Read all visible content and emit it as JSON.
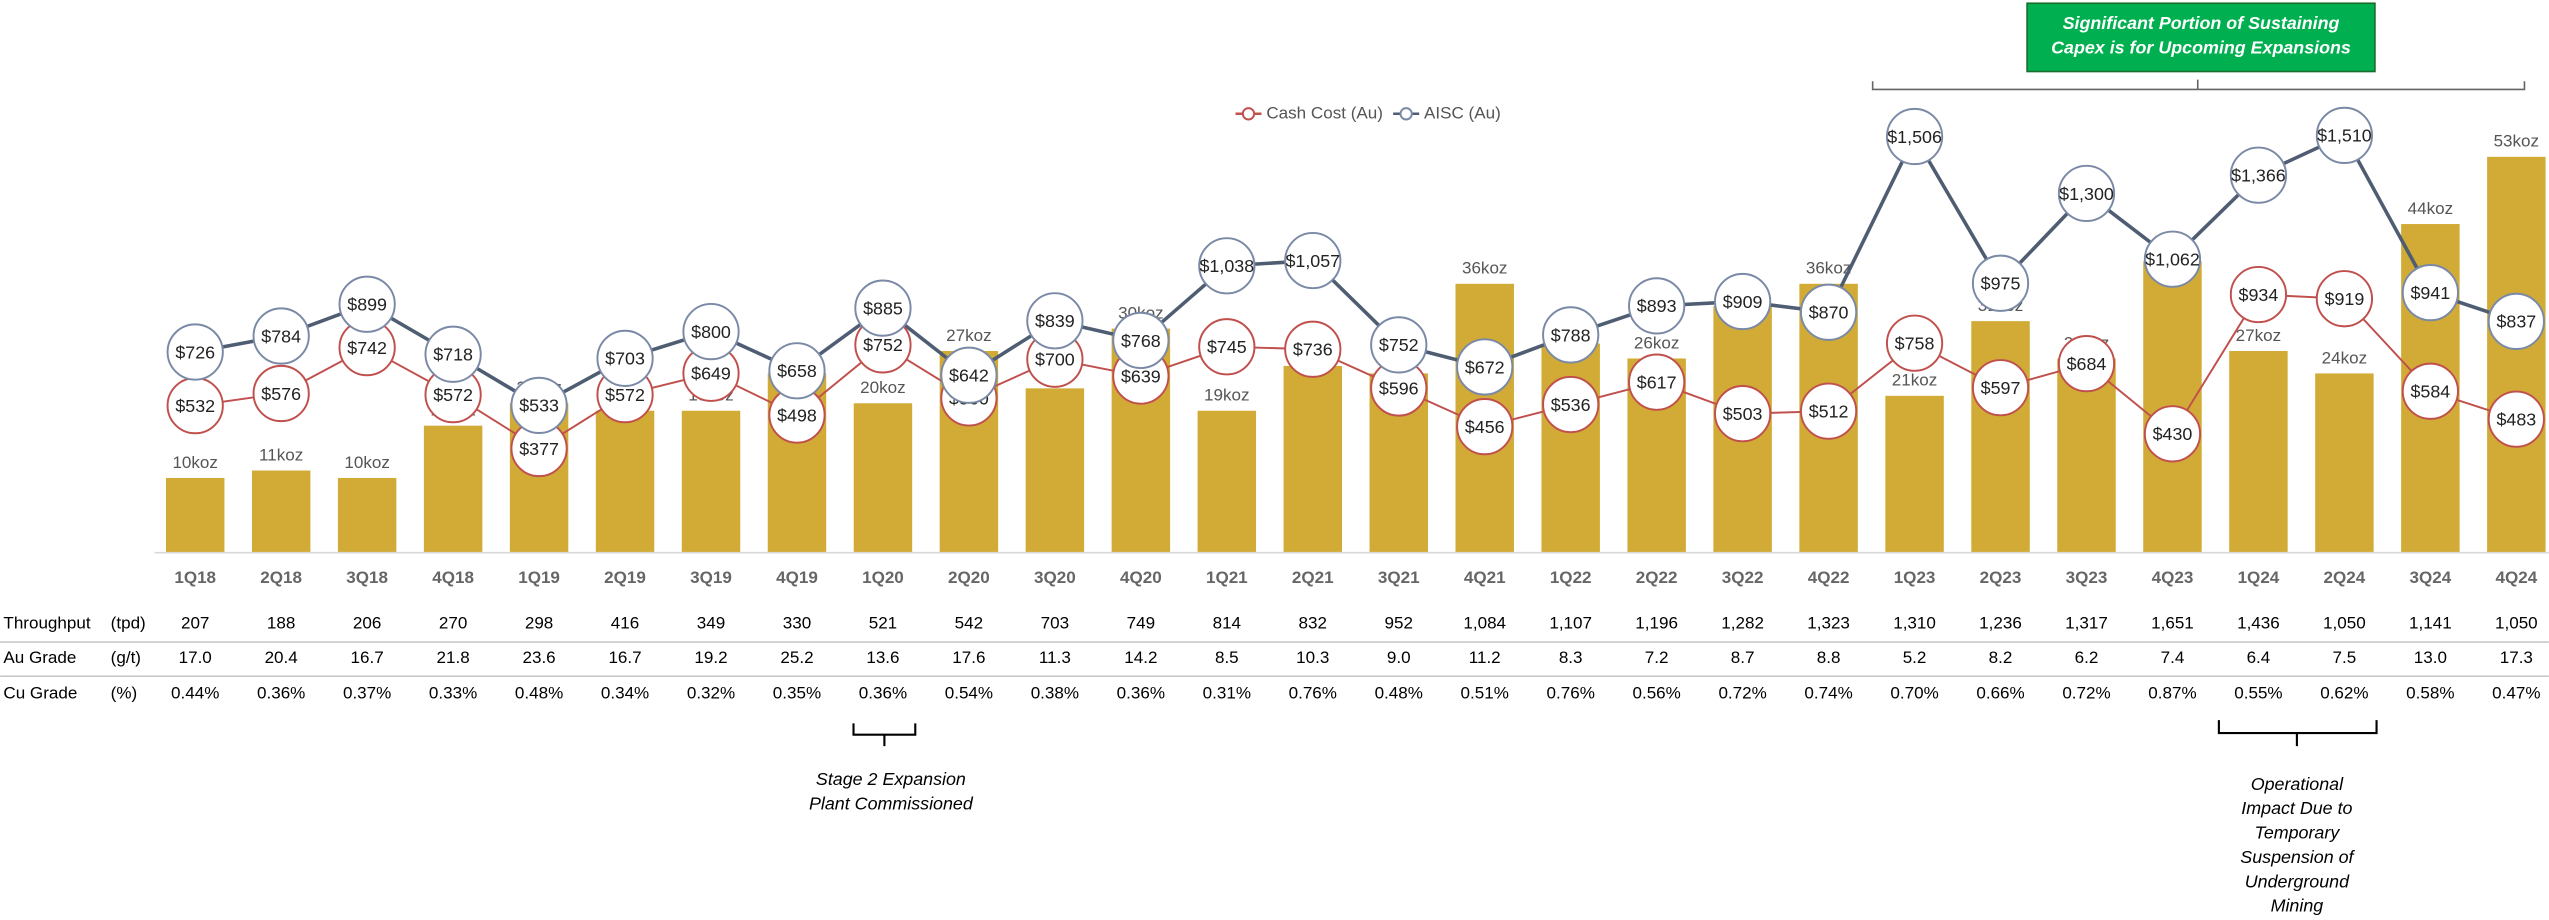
{
  "chart_data": {
    "type": "combo",
    "categories": [
      "1Q18",
      "2Q18",
      "3Q18",
      "4Q18",
      "1Q19",
      "2Q19",
      "3Q19",
      "4Q19",
      "1Q20",
      "2Q20",
      "3Q20",
      "4Q20",
      "1Q21",
      "2Q21",
      "3Q21",
      "4Q21",
      "1Q22",
      "2Q22",
      "3Q22",
      "4Q22",
      "1Q23",
      "2Q23",
      "3Q23",
      "4Q23",
      "1Q24",
      "2Q24",
      "3Q24",
      "4Q24"
    ],
    "values": [
      10,
      11,
      10,
      17,
      20,
      19,
      19,
      24,
      20,
      27,
      22,
      30,
      19,
      25,
      24,
      36,
      28,
      26,
      33,
      36,
      21,
      31,
      26,
      39,
      27,
      24,
      44,
      53
    ],
    "value_labels": [
      "10koz",
      "11koz",
      "10koz",
      "17koz",
      "20koz",
      "19koz",
      "19koz",
      "24koz",
      "20koz",
      "27koz",
      "22koz",
      "30koz",
      "19koz",
      "25koz",
      "24koz",
      "36koz",
      "28koz",
      "26koz",
      "33koz",
      "36koz",
      "21koz",
      "31koz",
      "26koz",
      "39koz",
      "27koz",
      "24koz",
      "44koz",
      "53koz"
    ],
    "color": "#d1ab35",
    "ylim": [
      0,
      74
    ],
    "y2lim": [
      0,
      2000
    ],
    "series": [
      {
        "name": "Cash Cost (Au)",
        "color": "#c0504d",
        "axis": "y2",
        "values": [
          532,
          576,
          742,
          572,
          377,
          572,
          649,
          498,
          752,
          560,
          700,
          639,
          745,
          736,
          596,
          456,
          536,
          617,
          503,
          512,
          758,
          597,
          684,
          430,
          934,
          919,
          584,
          483
        ],
        "value_labels": [
          "$532",
          "$576",
          "$742",
          "$572",
          "$377",
          "$572",
          "$649",
          "$498",
          "$752",
          "$560",
          "$700",
          "$639",
          "$745",
          "$736",
          "$596",
          "$456",
          "$536",
          "$617",
          "$503",
          "$512",
          "$758",
          "$597",
          "$684",
          "$430",
          "$934",
          "$919",
          "$584",
          "$483"
        ]
      },
      {
        "name": "AISC (Au)",
        "color": "#4f5d73",
        "axis": "y2",
        "values": [
          726,
          784,
          899,
          718,
          533,
          703,
          800,
          658,
          885,
          642,
          839,
          768,
          1038,
          1057,
          752,
          672,
          788,
          893,
          909,
          870,
          1506,
          975,
          1300,
          1062,
          1366,
          1510,
          941,
          837
        ],
        "value_labels": [
          "$726",
          "$784",
          "$899",
          "$718",
          "$533",
          "$703",
          "$800",
          "$658",
          "$885",
          "$642",
          "$839",
          "$768",
          "$1,038",
          "$1,057",
          "$752",
          "$672",
          "$788",
          "$893",
          "$909",
          "$870",
          "$1,506",
          "$975",
          "$1,300",
          "$1,062",
          "$1,366",
          "$1,510",
          "$941",
          "$837"
        ]
      }
    ],
    "legend": "top",
    "annotations": [
      {
        "lines": [
          "Significant Portion of Sustaining",
          "Capex is for Upcoming Expansions"
        ]
      },
      {
        "lines": [
          "Stage 2 Expansion",
          "Plant Commissioned"
        ]
      },
      {
        "lines": [
          "Operational",
          "Impact Due to",
          "Temporary",
          "Suspension of",
          "Underground",
          "Mining"
        ]
      }
    ]
  },
  "table": {
    "rows": [
      {
        "label": "Throughput",
        "unit": "(tpd)",
        "cells": [
          "207",
          "188",
          "206",
          "270",
          "298",
          "416",
          "349",
          "330",
          "521",
          "542",
          "703",
          "749",
          "814",
          "832",
          "952",
          "1,084",
          "1,107",
          "1,196",
          "1,282",
          "1,323",
          "1,310",
          "1,236",
          "1,317",
          "1,651",
          "1,436",
          "1,050",
          "1,141",
          "1,050"
        ]
      },
      {
        "label": "Au Grade",
        "unit": "(g/t)",
        "cells": [
          "17.0",
          "20.4",
          "16.7",
          "21.8",
          "23.6",
          "16.7",
          "19.2",
          "25.2",
          "13.6",
          "17.6",
          "11.3",
          "14.2",
          "8.5",
          "10.3",
          "9.0",
          "11.2",
          "8.3",
          "7.2",
          "8.7",
          "8.8",
          "5.2",
          "8.2",
          "6.2",
          "7.4",
          "6.4",
          "7.5",
          "13.0",
          "17.3"
        ]
      },
      {
        "label": "Cu Grade",
        "unit": "(%)",
        "cells": [
          "0.44%",
          "0.36%",
          "0.37%",
          "0.33%",
          "0.48%",
          "0.34%",
          "0.32%",
          "0.35%",
          "0.36%",
          "0.54%",
          "0.38%",
          "0.36%",
          "0.31%",
          "0.76%",
          "0.48%",
          "0.51%",
          "0.76%",
          "0.56%",
          "0.72%",
          "0.74%",
          "0.70%",
          "0.66%",
          "0.72%",
          "0.87%",
          "0.55%",
          "0.62%",
          "0.58%",
          "0.47%"
        ]
      }
    ]
  }
}
